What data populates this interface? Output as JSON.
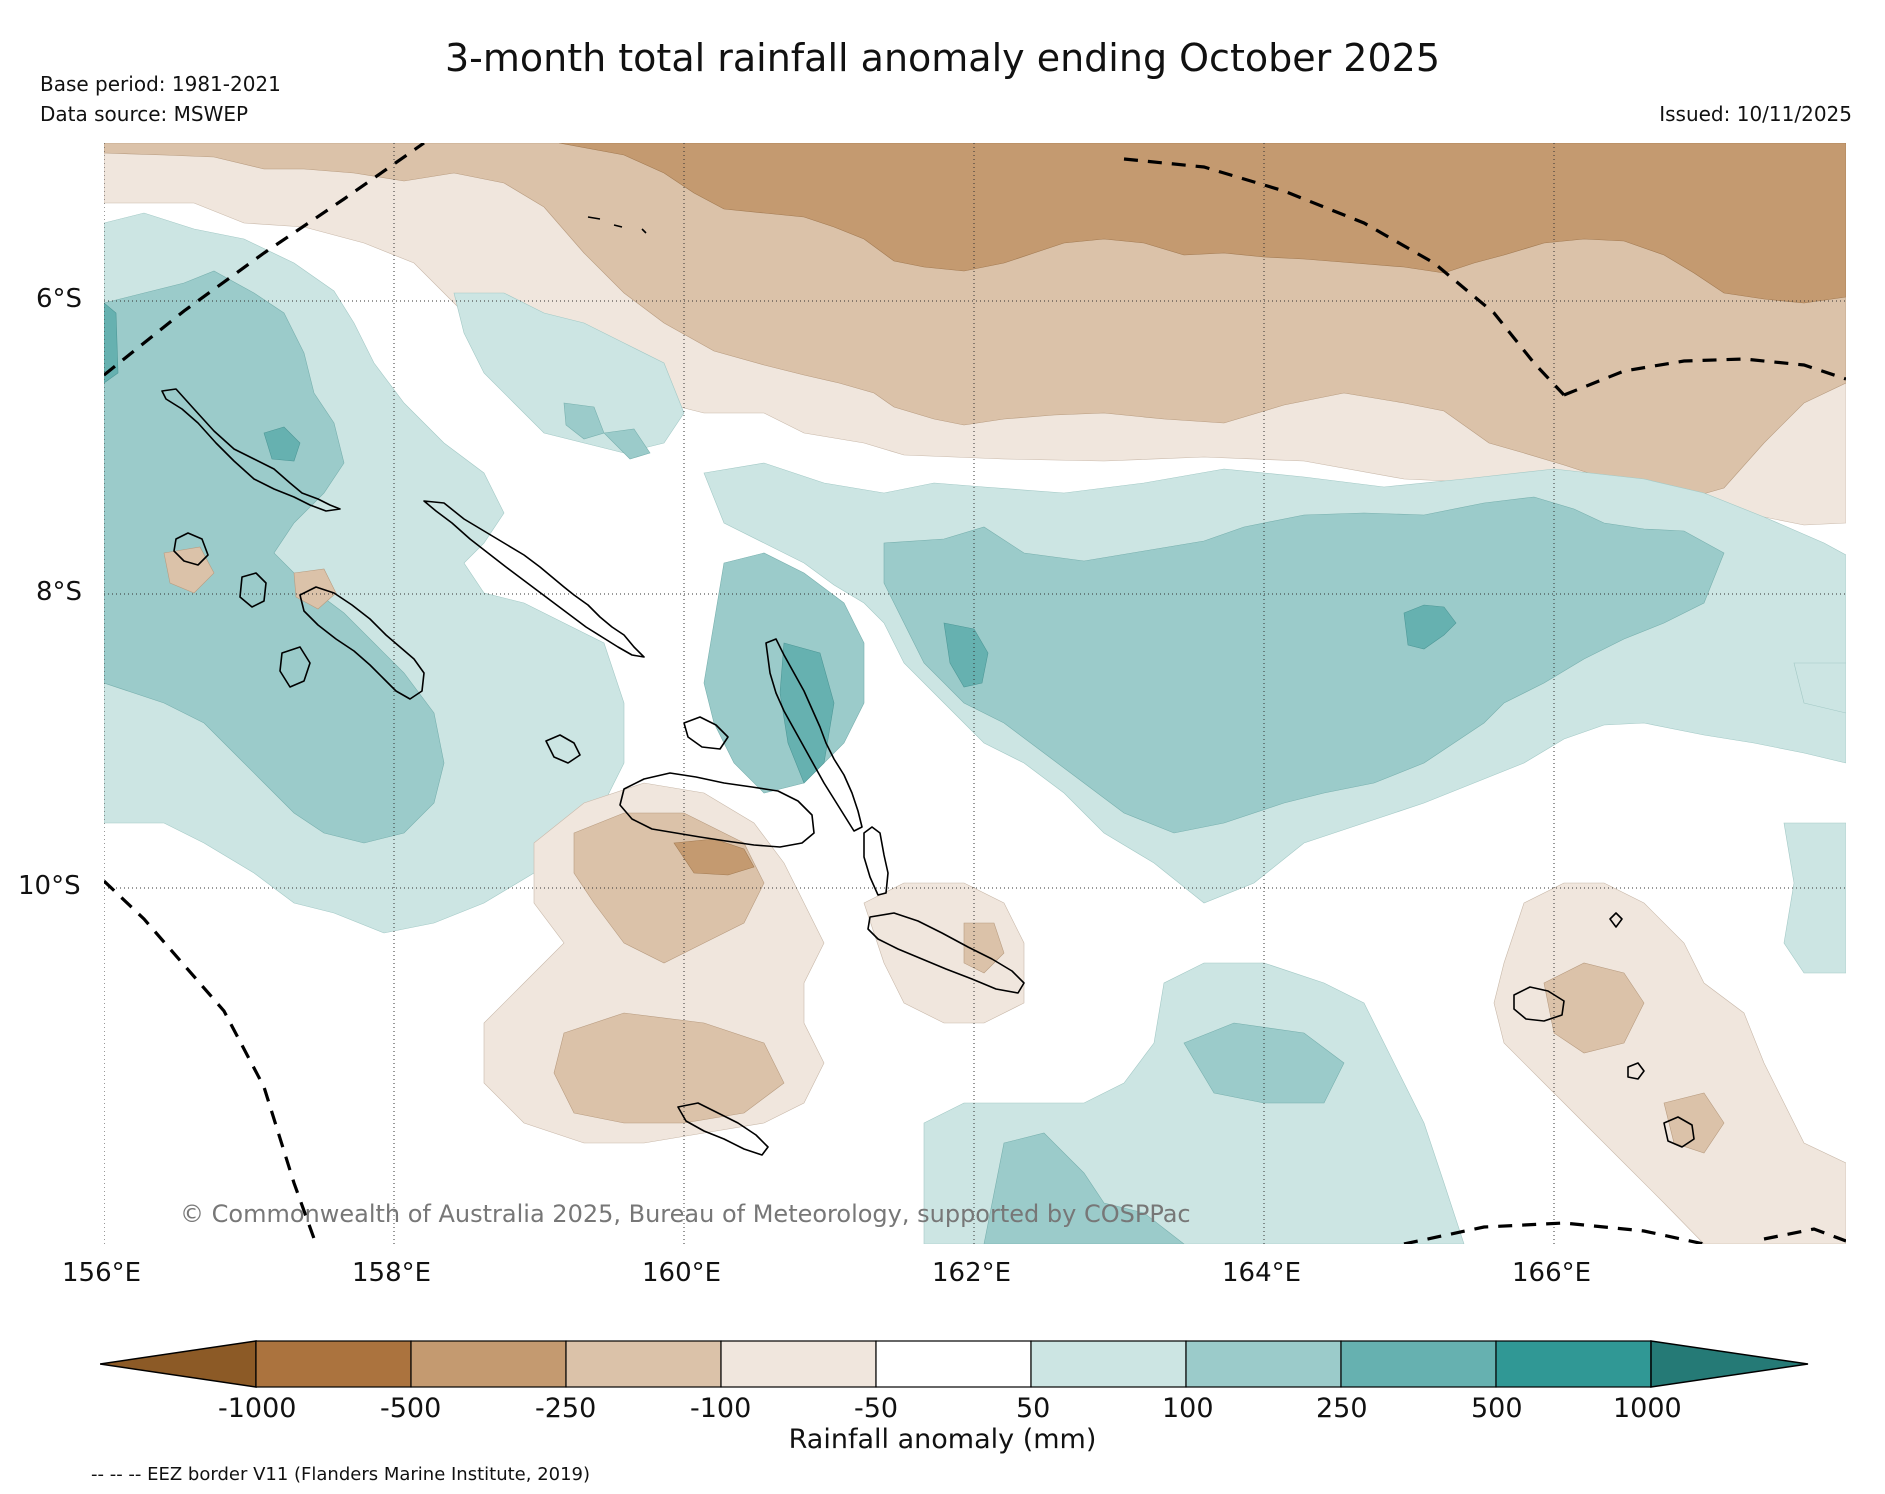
{
  "header": {
    "title": "3-month total rainfall anomaly ending October 2025",
    "base_period": "Base period: 1981-2021",
    "data_source": "Data source: MSWEP",
    "issued": "Issued: 10/11/2025"
  },
  "map": {
    "lat_labels": [
      "6°S",
      "8°S",
      "10°S"
    ],
    "lon_labels": [
      "156°E",
      "158°E",
      "160°E",
      "162°E",
      "164°E",
      "166°E"
    ],
    "credit": "© Commonwealth of Australia 2025, Bureau of Meteorology, supported by COSPPac",
    "region": "Solomon Islands",
    "lon_range": [
      156,
      168
    ],
    "lat_range": [
      -4.9,
      -12.45
    ]
  },
  "legend": {
    "title": "Rainfall anomaly (mm)",
    "tick_labels": [
      "-1000",
      "-500",
      "-250",
      "-100",
      "-50",
      "50",
      "100",
      "250",
      "500",
      "1000"
    ],
    "colors": [
      "#8c5a26",
      "#ab733e",
      "#c49a70",
      "#dbc2a9",
      "#f0e6dd",
      "#ffffff",
      "#cce5e3",
      "#9bcbca",
      "#66b1b0",
      "#309895",
      "#257a76"
    ],
    "footnote": "-- -- -- EEZ border V11 (Flanders Marine Institute, 2019)"
  }
}
